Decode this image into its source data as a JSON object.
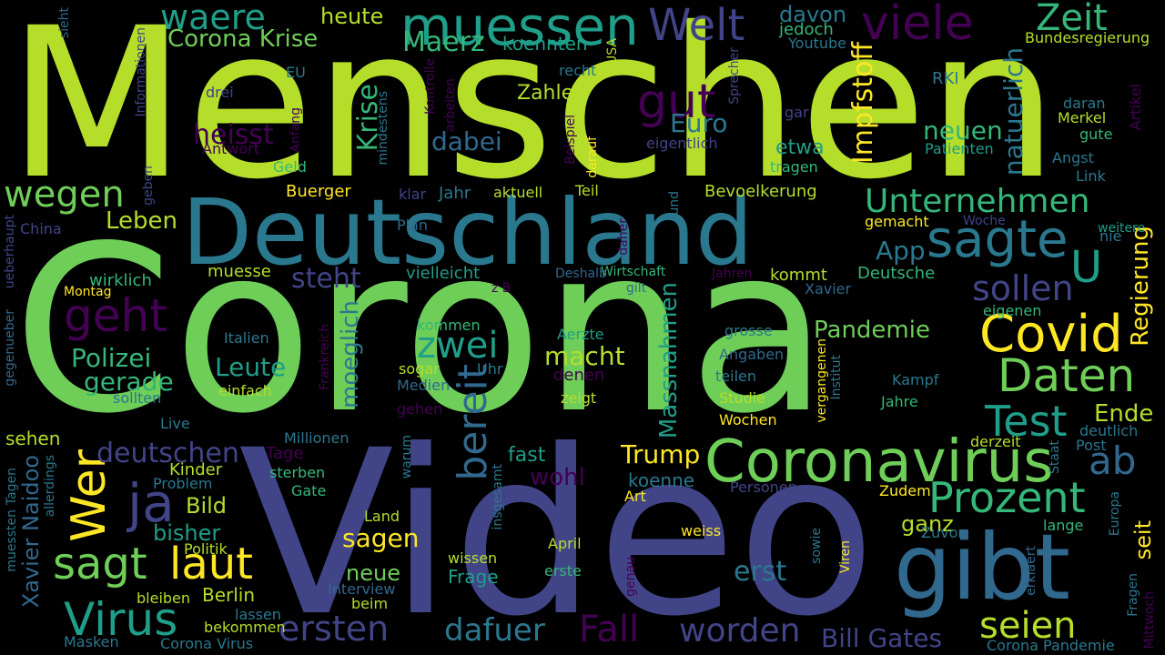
{
  "palette": {
    "background": "#000000",
    "yellow_green": "#b5de2b",
    "light_green": "#6ece58",
    "teal": "#2a788e",
    "indigo": "#414487",
    "purple": "#440154",
    "yellow": "#fde725",
    "green": "#35b779",
    "sea_green": "#1f9e89",
    "blue": "#31688e"
  },
  "words": [
    {
      "text": "Menschen",
      "color": "#b5de2b"
    },
    {
      "text": "Corona",
      "color": "#6ece58"
    },
    {
      "text": "Video",
      "color": "#414487"
    },
    {
      "text": "Deutschland",
      "color": "#2a788e"
    },
    {
      "text": "gibt",
      "color": "#31688e"
    },
    {
      "text": "Coronavirus",
      "color": "#6ece58"
    },
    {
      "text": "muessen",
      "color": "#1f9e89"
    },
    {
      "text": "Welt",
      "color": "#414487"
    },
    {
      "text": "viele",
      "color": "#440154"
    },
    {
      "text": "Zeit",
      "color": "#35b779"
    },
    {
      "text": "waere",
      "color": "#1f9e89"
    },
    {
      "text": "heute",
      "color": "#b5de2b"
    },
    {
      "text": "Corona Krise",
      "color": "#6ece58"
    },
    {
      "text": "Maerz",
      "color": "#35b779"
    },
    {
      "text": "koennten",
      "color": "#1f9e89"
    },
    {
      "text": "davon",
      "color": "#2a788e"
    },
    {
      "text": "jedoch",
      "color": "#35b779"
    },
    {
      "text": "Youtube",
      "color": "#2a788e"
    },
    {
      "text": "Bundesregierung",
      "color": "#b5de2b"
    },
    {
      "text": "wegen",
      "color": "#6ece58"
    },
    {
      "text": "gut",
      "color": "#440154"
    },
    {
      "text": "heisst",
      "color": "#440154"
    },
    {
      "text": "Euro",
      "color": "#2a788e"
    },
    {
      "text": "dabei",
      "color": "#31688e"
    },
    {
      "text": "Krise",
      "color": "#35b779"
    },
    {
      "text": "Impfstoff",
      "color": "#fde725"
    },
    {
      "text": "neuen",
      "color": "#35b779"
    },
    {
      "text": "natuerlich",
      "color": "#2a788e"
    },
    {
      "text": "etwa",
      "color": "#1f9e89"
    },
    {
      "text": "Zahlen",
      "color": "#b5de2b"
    },
    {
      "text": "Unternehmen",
      "color": "#35b779"
    },
    {
      "text": "sagte",
      "color": "#2a788e"
    },
    {
      "text": "App",
      "color": "#2a788e"
    },
    {
      "text": "U",
      "color": "#1f9e89"
    },
    {
      "text": "sollen",
      "color": "#414487"
    },
    {
      "text": "Regierung",
      "color": "#fde725"
    },
    {
      "text": "geht",
      "color": "#440154"
    },
    {
      "text": "Leben",
      "color": "#b5de2b"
    },
    {
      "text": "steht",
      "color": "#414487"
    },
    {
      "text": "Covid",
      "color": "#fde725"
    },
    {
      "text": "Daten",
      "color": "#6ece58"
    },
    {
      "text": "zwei",
      "color": "#1f9e89"
    },
    {
      "text": "Pandemie",
      "color": "#6ece58"
    },
    {
      "text": "Test",
      "color": "#1f9e89"
    },
    {
      "text": "Ende",
      "color": "#b5de2b"
    },
    {
      "text": "ab",
      "color": "#31688e"
    },
    {
      "text": "Prozent",
      "color": "#35b779"
    },
    {
      "text": "seit",
      "color": "#fde725"
    },
    {
      "text": "bereit",
      "color": "#31688e"
    },
    {
      "text": "Wer",
      "color": "#fde725"
    },
    {
      "text": "ja",
      "color": "#414487"
    },
    {
      "text": "sagt",
      "color": "#6ece58"
    },
    {
      "text": "laut",
      "color": "#fde725"
    },
    {
      "text": "Virus",
      "color": "#1f9e89"
    },
    {
      "text": "ersten",
      "color": "#414487"
    },
    {
      "text": "dafuer",
      "color": "#2a788e"
    },
    {
      "text": "Fall",
      "color": "#440154"
    },
    {
      "text": "worden",
      "color": "#414487"
    },
    {
      "text": "seien",
      "color": "#b5de2b"
    },
    {
      "text": "Bill Gates",
      "color": "#414487"
    },
    {
      "text": "erst",
      "color": "#2a788e"
    },
    {
      "text": "Trump",
      "color": "#fde725"
    },
    {
      "text": "deutschen",
      "color": "#414487"
    },
    {
      "text": "Leute",
      "color": "#1f9e89"
    },
    {
      "text": "moeglich",
      "color": "#2a788e"
    },
    {
      "text": "Polizei",
      "color": "#35b779"
    },
    {
      "text": "gerade",
      "color": "#35b779"
    },
    {
      "text": "macht",
      "color": "#b5de2b"
    },
    {
      "text": "Massnahmen",
      "color": "#1f9e89"
    },
    {
      "text": "wohl",
      "color": "#440154"
    },
    {
      "text": "ganz",
      "color": "#b5de2b"
    },
    {
      "text": "sagen",
      "color": "#fde725"
    },
    {
      "text": "neue",
      "color": "#6ece58"
    },
    {
      "text": "Bild",
      "color": "#b5de2b"
    },
    {
      "text": "bisher",
      "color": "#1f9e89"
    },
    {
      "text": "Xavier Naidoo",
      "color": "#31688e"
    },
    {
      "text": "Berlin",
      "color": "#b5de2b"
    },
    {
      "text": "Frage",
      "color": "#1f9e89"
    },
    {
      "text": "fast",
      "color": "#1f9e89"
    },
    {
      "text": "koenne",
      "color": "#2a788e"
    },
    {
      "text": "China",
      "color": "#414487"
    },
    {
      "text": "wirklich",
      "color": "#35b779"
    },
    {
      "text": "muesse",
      "color": "#b5de2b"
    },
    {
      "text": "Buerger",
      "color": "#fde725"
    },
    {
      "text": "Bevoelkerung",
      "color": "#b5de2b"
    },
    {
      "text": "vielleicht",
      "color": "#1f9e89"
    },
    {
      "text": "kommt",
      "color": "#b5de2b"
    },
    {
      "text": "Deutsche",
      "color": "#35b779"
    },
    {
      "text": "Wirtschaft",
      "color": "#35b779"
    },
    {
      "text": "Deshalb",
      "color": "#31688e"
    },
    {
      "text": "kommen",
      "color": "#35b779"
    },
    {
      "text": "Aerzte",
      "color": "#1f9e89"
    },
    {
      "text": "denen",
      "color": "#440154"
    },
    {
      "text": "zeigt",
      "color": "#b5de2b"
    },
    {
      "text": "Medien",
      "color": "#31688e"
    },
    {
      "text": "sogar",
      "color": "#b5de2b"
    },
    {
      "text": "Uhr",
      "color": "#2a788e"
    },
    {
      "text": "gehen",
      "color": "#440154"
    },
    {
      "text": "einfach",
      "color": "#b5de2b"
    },
    {
      "text": "Italien",
      "color": "#2a788e"
    },
    {
      "text": "sollten",
      "color": "#2a788e"
    },
    {
      "text": "Live",
      "color": "#2a788e"
    },
    {
      "text": "Millionen",
      "color": "#2a788e"
    },
    {
      "text": "sehen",
      "color": "#b5de2b"
    },
    {
      "text": "Tage",
      "color": "#440154"
    },
    {
      "text": "Kinder",
      "color": "#b5de2b"
    },
    {
      "text": "Problem",
      "color": "#2a788e"
    },
    {
      "text": "sterben",
      "color": "#35b779"
    },
    {
      "text": "Gate",
      "color": "#35b779"
    },
    {
      "text": "Politik",
      "color": "#b5de2b"
    },
    {
      "text": "Interview",
      "color": "#31688e"
    },
    {
      "text": "beim",
      "color": "#b5de2b"
    },
    {
      "text": "bleiben",
      "color": "#b5de2b"
    },
    {
      "text": "bekommen",
      "color": "#b5de2b"
    },
    {
      "text": "lassen",
      "color": "#2a788e"
    },
    {
      "text": "Masken",
      "color": "#2a788e"
    },
    {
      "text": "Corona Virus",
      "color": "#2a788e"
    },
    {
      "text": "Land",
      "color": "#b5de2b"
    },
    {
      "text": "wissen",
      "color": "#b5de2b"
    },
    {
      "text": "Art",
      "color": "#fde725"
    },
    {
      "text": "April",
      "color": "#b5de2b"
    },
    {
      "text": "erste",
      "color": "#35b779"
    },
    {
      "text": "weiss",
      "color": "#fde725"
    },
    {
      "text": "Zudem",
      "color": "#fde725"
    },
    {
      "text": "Personen",
      "color": "#414487"
    },
    {
      "text": "lange",
      "color": "#35b779"
    },
    {
      "text": "Zuvor",
      "color": "#2a788e"
    },
    {
      "text": "Staat",
      "color": "#2a788e"
    },
    {
      "text": "Post",
      "color": "#2a788e"
    },
    {
      "text": "derzeit",
      "color": "#b5de2b"
    },
    {
      "text": "deutlich",
      "color": "#2a788e"
    },
    {
      "text": "Corona Pandemie",
      "color": "#2a788e"
    },
    {
      "text": "Wochen",
      "color": "#fde725"
    },
    {
      "text": "Studie",
      "color": "#b5de2b"
    },
    {
      "text": "teilen",
      "color": "#2a788e"
    },
    {
      "text": "Angaben",
      "color": "#31688e"
    },
    {
      "text": "grosse",
      "color": "#2a788e"
    },
    {
      "text": "Kampf",
      "color": "#2a788e"
    },
    {
      "text": "Jahre",
      "color": "#35b779"
    },
    {
      "text": "eigenen",
      "color": "#35b779"
    },
    {
      "text": "Xavier",
      "color": "#31688e"
    },
    {
      "text": "Jahren",
      "color": "#440154"
    },
    {
      "text": "gilt",
      "color": "#31688e"
    },
    {
      "text": "z B",
      "color": "#440154"
    },
    {
      "text": "Plan",
      "color": "#31688e"
    },
    {
      "text": "Jahr",
      "color": "#2a788e"
    },
    {
      "text": "aktuell",
      "color": "#b5de2b"
    },
    {
      "text": "klar",
      "color": "#414487"
    },
    {
      "text": "Teil",
      "color": "#b5de2b"
    },
    {
      "text": "gemacht",
      "color": "#fde725"
    },
    {
      "text": "Woche",
      "color": "#414487"
    },
    {
      "text": "nie",
      "color": "#2a788e"
    },
    {
      "text": "weitere",
      "color": "#1f9e89"
    },
    {
      "text": "Link",
      "color": "#2a788e"
    },
    {
      "text": "Angst",
      "color": "#2a788e"
    },
    {
      "text": "gute",
      "color": "#35b779"
    },
    {
      "text": "Merkel",
      "color": "#b5de2b"
    },
    {
      "text": "daran",
      "color": "#2a788e"
    },
    {
      "text": "Artikel",
      "color": "#440154"
    },
    {
      "text": "RKI",
      "color": "#2a788e"
    },
    {
      "text": "gar",
      "color": "#414487"
    },
    {
      "text": "eigentlich",
      "color": "#414487"
    },
    {
      "text": "Patienten",
      "color": "#1f9e89"
    },
    {
      "text": "tragen",
      "color": "#35b779"
    },
    {
      "text": "recht",
      "color": "#2a788e"
    },
    {
      "text": "EU",
      "color": "#2a788e"
    },
    {
      "text": "drei",
      "color": "#414487"
    },
    {
      "text": "Antwort",
      "color": "#440154"
    },
    {
      "text": "Geld",
      "color": "#35b779"
    },
    {
      "text": "Anfang",
      "color": "#440154"
    },
    {
      "text": "USA",
      "color": "#b5de2b"
    },
    {
      "text": "Sprecher",
      "color": "#414487"
    },
    {
      "text": "sieht",
      "color": "#31688e"
    },
    {
      "text": "Informationen",
      "color": "#414487"
    },
    {
      "text": "geben",
      "color": "#414487"
    },
    {
      "text": "ueberhaupt",
      "color": "#414487"
    },
    {
      "text": "mindestens",
      "color": "#2a788e"
    },
    {
      "text": "arbeiten",
      "color": "#440154"
    },
    {
      "text": "Kontrolle",
      "color": "#440154"
    },
    {
      "text": "Beispiel",
      "color": "#440154"
    },
    {
      "text": "darauf",
      "color": "#fde725"
    },
    {
      "text": "rund",
      "color": "#2a788e"
    },
    {
      "text": "daher",
      "color": "#440154"
    },
    {
      "text": "Montag",
      "color": "#fde725"
    },
    {
      "text": "gegenueber",
      "color": "#31688e"
    },
    {
      "text": "Frankreich",
      "color": "#440154"
    },
    {
      "text": "warum",
      "color": "#2a788e"
    },
    {
      "text": "insgesamt",
      "color": "#2a788e"
    },
    {
      "text": "allerdings",
      "color": "#2a788e"
    },
    {
      "text": "muessten",
      "color": "#2a788e"
    },
    {
      "text": "Tagen",
      "color": "#2a788e"
    },
    {
      "text": "vergangenen",
      "color": "#fde725"
    },
    {
      "text": "Institut",
      "color": "#2a788e"
    },
    {
      "text": "sowie",
      "color": "#2a788e"
    },
    {
      "text": "Viren",
      "color": "#fde725"
    },
    {
      "text": "genau",
      "color": "#440154"
    },
    {
      "text": "erklaert",
      "color": "#31688e"
    },
    {
      "text": "Europa",
      "color": "#2a788e"
    },
    {
      "text": "Fragen",
      "color": "#2a788e"
    },
    {
      "text": "Mittwoch",
      "color": "#440154"
    }
  ]
}
